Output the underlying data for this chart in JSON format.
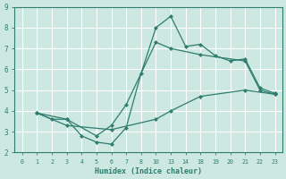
{
  "xlabel": "Humidex (Indice chaleur)",
  "bg_color": "#cce8e0",
  "grid_color": "#ffffff",
  "line_color": "#2e7d6e",
  "xlim": [
    -0.5,
    17.5
  ],
  "ylim": [
    2,
    9
  ],
  "xtick_positions": [
    0,
    1,
    2,
    3,
    4,
    5,
    6,
    7,
    8,
    9,
    10,
    11,
    12,
    13,
    14,
    15,
    16,
    17
  ],
  "xtick_labels": [
    "0",
    "1",
    "2",
    "3",
    "4",
    "5",
    "6",
    "7",
    "8",
    "10",
    "13",
    "14",
    "18",
    "19",
    "20",
    "21",
    "22",
    "23"
  ],
  "xval_map": {
    "0": 0,
    "1": 1,
    "2": 2,
    "3": 3,
    "4": 4,
    "5": 5,
    "6": 6,
    "7": 7,
    "8": 8,
    "10": 9,
    "13": 10,
    "14": 11,
    "18": 12,
    "19": 13,
    "20": 14,
    "21": 15,
    "22": 16,
    "23": 17
  },
  "yticks": [
    2,
    3,
    4,
    5,
    6,
    7,
    8,
    9
  ],
  "lines": [
    {
      "xvals": [
        1,
        2,
        3,
        4,
        5,
        6,
        7,
        8,
        10,
        13,
        14,
        18,
        19,
        20,
        21,
        22,
        23
      ],
      "y": [
        3.9,
        3.6,
        3.6,
        2.8,
        2.5,
        2.4,
        3.2,
        5.8,
        8.0,
        8.55,
        7.1,
        7.2,
        6.65,
        6.4,
        6.5,
        5.1,
        4.85
      ]
    },
    {
      "xvals": [
        1,
        3,
        5,
        6,
        7,
        10,
        13,
        18,
        21,
        22,
        23
      ],
      "y": [
        3.9,
        3.6,
        2.8,
        3.3,
        4.3,
        7.3,
        7.0,
        6.7,
        6.4,
        5.0,
        4.8
      ]
    },
    {
      "xvals": [
        1,
        3,
        6,
        10,
        13,
        18,
        21,
        23
      ],
      "y": [
        3.9,
        3.3,
        3.1,
        3.6,
        4.0,
        4.7,
        5.0,
        4.8
      ]
    }
  ]
}
